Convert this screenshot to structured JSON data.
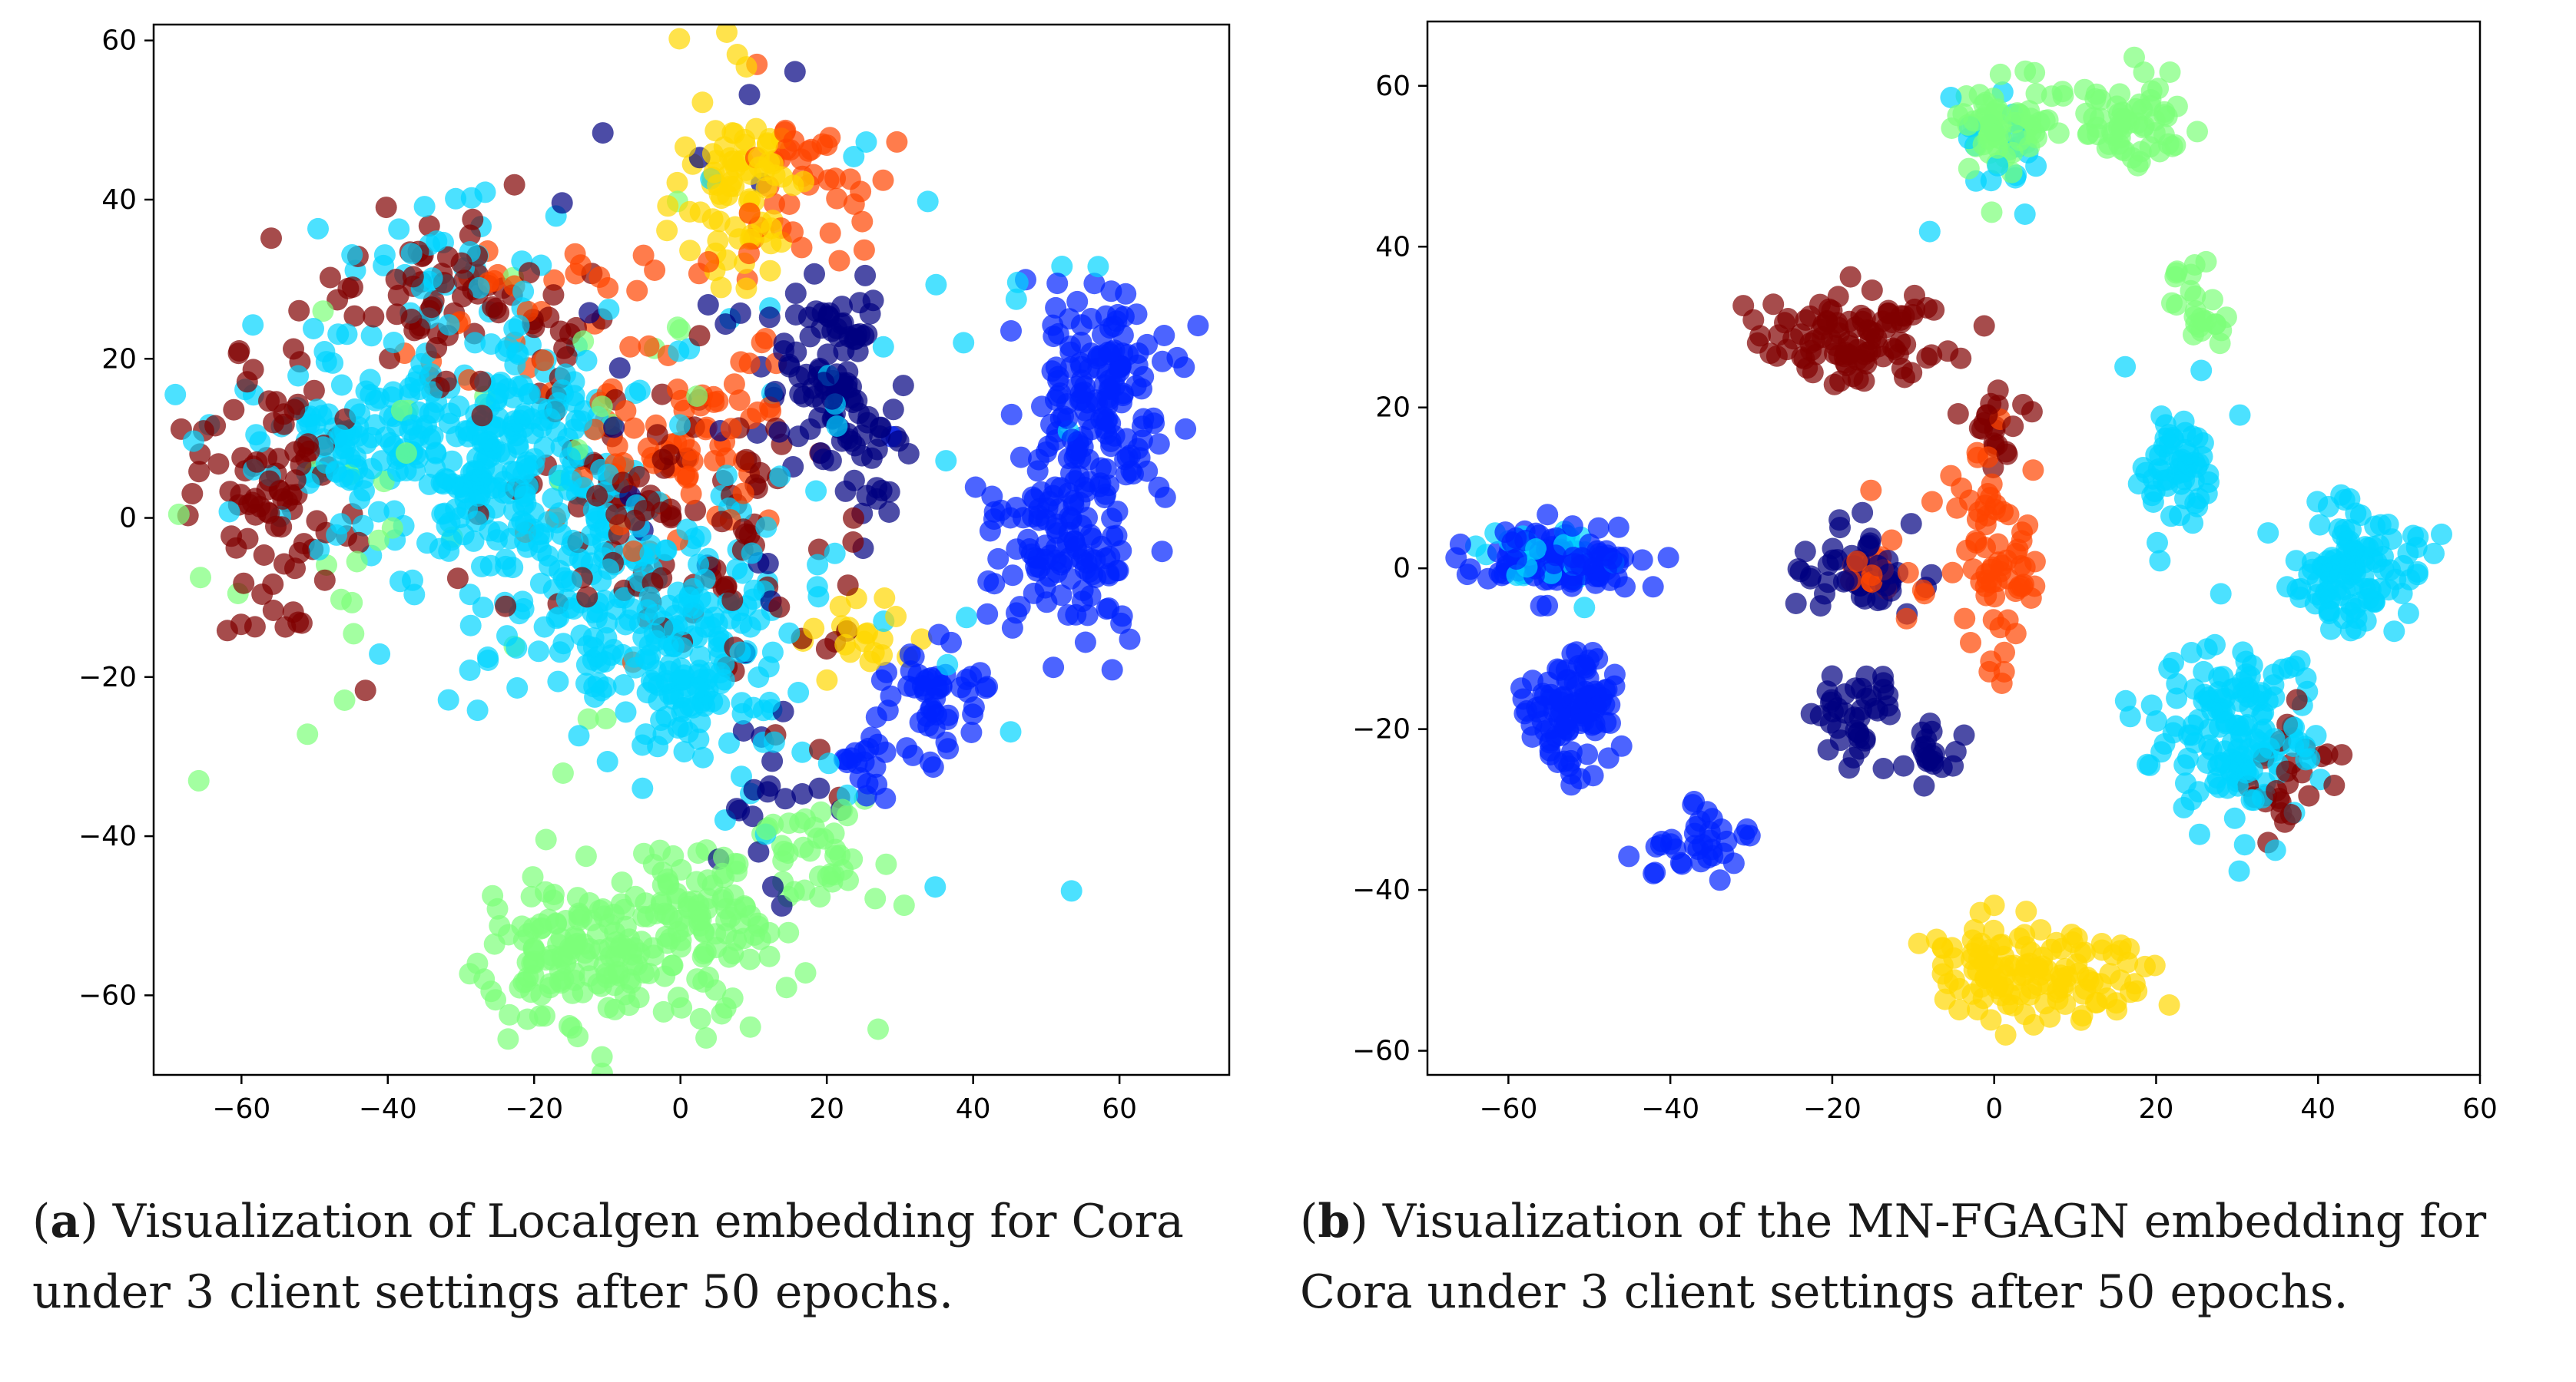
{
  "chart_data": [
    {
      "type": "scatter",
      "panel_label": "a",
      "caption": "Visualization of Localgen embedding for Cora under 3 client settings after 50 epochs.",
      "xlim": [
        -72,
        75
      ],
      "ylim": [
        -70,
        62
      ],
      "xticks": [
        -60,
        -40,
        -20,
        0,
        20,
        40,
        60
      ],
      "yticks": [
        -60,
        -40,
        -20,
        0,
        20,
        40,
        60
      ],
      "xlabel": "",
      "ylabel": "",
      "title": "",
      "clusters": [
        {
          "color": "#00d4ff",
          "cx": -28,
          "cy": 8,
          "sx": 10,
          "sy": 7,
          "n": 260
        },
        {
          "color": "#00d4ff",
          "cx": -10,
          "cy": -8,
          "sx": 12,
          "sy": 8,
          "n": 180
        },
        {
          "color": "#00d4ff",
          "cx": 3,
          "cy": -20,
          "sx": 6,
          "sy": 6,
          "n": 110
        },
        {
          "color": "#00d4ff",
          "cx": -50,
          "cy": 12,
          "sx": 8,
          "sy": 7,
          "n": 50
        },
        {
          "color": "#00d4ff",
          "cx": -30,
          "cy": 32,
          "sx": 8,
          "sy": 5,
          "n": 35
        },
        {
          "color": "#00d4ff",
          "cx": 15,
          "cy": 5,
          "sx": 25,
          "sy": 25,
          "n": 50
        },
        {
          "color": "#800000",
          "cx": -55,
          "cy": 3,
          "sx": 5,
          "sy": 8,
          "n": 90
        },
        {
          "color": "#800000",
          "cx": -30,
          "cy": 28,
          "sx": 9,
          "sy": 5,
          "n": 70
        },
        {
          "color": "#800000",
          "cx": -5,
          "cy": 2,
          "sx": 10,
          "sy": 8,
          "n": 80
        },
        {
          "color": "#800000",
          "cx": 10,
          "cy": -10,
          "sx": 8,
          "sy": 10,
          "n": 30
        },
        {
          "color": "#ff4500",
          "cx": 0,
          "cy": 10,
          "sx": 8,
          "sy": 9,
          "n": 80
        },
        {
          "color": "#ff4500",
          "cx": 18,
          "cy": 42,
          "sx": 5,
          "sy": 5,
          "n": 40
        },
        {
          "color": "#ff4500",
          "cx": -20,
          "cy": 27,
          "sx": 8,
          "sy": 5,
          "n": 25
        },
        {
          "color": "#000080",
          "cx": 20,
          "cy": 22,
          "sx": 4,
          "sy": 5,
          "n": 50
        },
        {
          "color": "#000080",
          "cx": 24,
          "cy": 10,
          "sx": 4,
          "sy": 5,
          "n": 50
        },
        {
          "color": "#000080",
          "cx": 10,
          "cy": 25,
          "sx": 10,
          "sy": 20,
          "n": 30
        },
        {
          "color": "#000080",
          "cx": 12,
          "cy": -30,
          "sx": 4,
          "sy": 10,
          "n": 20
        },
        {
          "color": "#0022ff",
          "cx": 57,
          "cy": 16,
          "sx": 5,
          "sy": 7,
          "n": 150
        },
        {
          "color": "#0022ff",
          "cx": 52,
          "cy": -3,
          "sx": 6,
          "sy": 6,
          "n": 120
        },
        {
          "color": "#0022ff",
          "cx": 35,
          "cy": -22,
          "sx": 4,
          "sy": 4,
          "n": 50
        },
        {
          "color": "#0022ff",
          "cx": 25,
          "cy": -30,
          "sx": 3,
          "sy": 3,
          "n": 20
        },
        {
          "color": "#ffd700",
          "cx": 8,
          "cy": 43,
          "sx": 4,
          "sy": 6,
          "n": 80
        },
        {
          "color": "#ffd700",
          "cx": 25,
          "cy": -15,
          "sx": 3,
          "sy": 3,
          "n": 20
        },
        {
          "color": "#7cff79",
          "cx": -15,
          "cy": -55,
          "sx": 6,
          "sy": 5,
          "n": 130
        },
        {
          "color": "#7cff79",
          "cx": 3,
          "cy": -52,
          "sx": 7,
          "sy": 5,
          "n": 110
        },
        {
          "color": "#7cff79",
          "cx": 18,
          "cy": -42,
          "sx": 5,
          "sy": 3,
          "n": 40
        },
        {
          "color": "#7cff79",
          "cx": -30,
          "cy": 5,
          "sx": 25,
          "sy": 20,
          "n": 40
        }
      ]
    },
    {
      "type": "scatter",
      "panel_label": "b",
      "caption": "Visualization of the MN-FGAGN embedding for Cora under 3 client settings after 50 epochs.",
      "xlim": [
        -70,
        60
      ],
      "ylim": [
        -63,
        68
      ],
      "xticks": [
        -60,
        -40,
        -20,
        0,
        20,
        40,
        60
      ],
      "yticks": [
        -60,
        -40,
        -20,
        0,
        20,
        40,
        60
      ],
      "xlabel": "",
      "ylabel": "",
      "title": "",
      "clusters": [
        {
          "color": "#7cff79",
          "cx": 3,
          "cy": 55,
          "sx": 4,
          "sy": 3,
          "n": 70
        },
        {
          "color": "#7cff79",
          "cx": 17,
          "cy": 55,
          "sx": 4,
          "sy": 3,
          "n": 60
        },
        {
          "color": "#7cff79",
          "cx": 25,
          "cy": 33,
          "sx": 2,
          "sy": 3,
          "n": 25
        },
        {
          "color": "#00d4ff",
          "cx": 0,
          "cy": 52,
          "sx": 3,
          "sy": 4,
          "n": 20
        },
        {
          "color": "#00d4ff",
          "cx": 23,
          "cy": 12,
          "sx": 3,
          "sy": 4,
          "n": 60
        },
        {
          "color": "#00d4ff",
          "cx": 45,
          "cy": 0,
          "sx": 4,
          "sy": 4,
          "n": 110
        },
        {
          "color": "#00d4ff",
          "cx": 30,
          "cy": -20,
          "sx": 5,
          "sy": 6,
          "n": 150
        },
        {
          "color": "#00d4ff",
          "cx": -55,
          "cy": 2,
          "sx": 3,
          "sy": 2,
          "n": 30
        },
        {
          "color": "#800000",
          "cx": -18,
          "cy": 28,
          "sx": 5,
          "sy": 3,
          "n": 100
        },
        {
          "color": "#800000",
          "cx": 0,
          "cy": 18,
          "sx": 2,
          "sy": 3,
          "n": 20
        },
        {
          "color": "#800000",
          "cx": 35,
          "cy": -28,
          "sx": 4,
          "sy": 4,
          "n": 25
        },
        {
          "color": "#ff4500",
          "cx": 0,
          "cy": 2,
          "sx": 3,
          "sy": 6,
          "n": 70
        },
        {
          "color": "#ff4500",
          "cx": -12,
          "cy": -2,
          "sx": 3,
          "sy": 3,
          "n": 20
        },
        {
          "color": "#000080",
          "cx": -18,
          "cy": -1,
          "sx": 4,
          "sy": 3,
          "n": 50
        },
        {
          "color": "#000080",
          "cx": -17,
          "cy": -19,
          "sx": 3,
          "sy": 3,
          "n": 40
        },
        {
          "color": "#000080",
          "cx": -8,
          "cy": -23,
          "sx": 2,
          "sy": 2,
          "n": 20
        },
        {
          "color": "#0022ff",
          "cx": -55,
          "cy": 1,
          "sx": 5,
          "sy": 2,
          "n": 120
        },
        {
          "color": "#0022ff",
          "cx": -52,
          "cy": -18,
          "sx": 3,
          "sy": 4,
          "n": 100
        },
        {
          "color": "#0022ff",
          "cx": -37,
          "cy": -34,
          "sx": 3,
          "sy": 2,
          "n": 35
        },
        {
          "color": "#ffd700",
          "cx": 0,
          "cy": -50,
          "sx": 4,
          "sy": 3,
          "n": 70
        },
        {
          "color": "#ffd700",
          "cx": 12,
          "cy": -51,
          "sx": 4,
          "sy": 3,
          "n": 60
        }
      ]
    }
  ]
}
